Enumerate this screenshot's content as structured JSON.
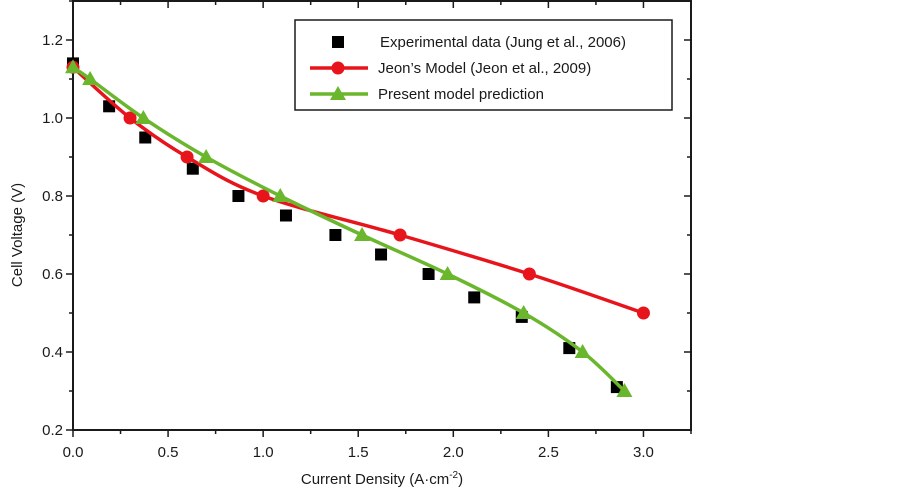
{
  "chart_data": {
    "type": "line",
    "title": "",
    "xlabel": "Current Density (A·cm",
    "xlabel_sup": "-2",
    "xlabel_end": ")",
    "ylabel": "Cell Voltage (V)",
    "xlim": [
      0,
      3.25
    ],
    "ylim": [
      0.2,
      1.3
    ],
    "x_ticks": [
      0.0,
      0.5,
      1.0,
      1.5,
      2.0,
      2.5,
      3.0
    ],
    "x_tick_labels": [
      "0.0",
      "0.5",
      "1.0",
      "1.5",
      "2.0",
      "2.5",
      "3.0"
    ],
    "x_minor_step": 0.25,
    "y_ticks": [
      0.2,
      0.4,
      0.6,
      0.8,
      1.0,
      1.2
    ],
    "y_tick_labels": [
      "0.2",
      "0.4",
      "0.6",
      "0.8",
      "1.0",
      "1.2"
    ],
    "y_minor_step": 0.1,
    "grid": false,
    "legend_position": "top-right",
    "series": [
      {
        "name": "Experimental data (Jung et al., 2006)",
        "marker": "square",
        "line": false,
        "color": "#000000",
        "x": [
          0.0,
          0.19,
          0.38,
          0.63,
          0.87,
          1.12,
          1.38,
          1.62,
          1.87,
          2.11,
          2.36,
          2.61,
          2.86
        ],
        "y": [
          1.14,
          1.03,
          0.95,
          0.87,
          0.8,
          0.75,
          0.7,
          0.65,
          0.6,
          0.54,
          0.49,
          0.41,
          0.31
        ]
      },
      {
        "name": "Jeon’s Model (Jeon et al., 2009)",
        "marker": "circle",
        "line": true,
        "color": "#e8141c",
        "x": [
          0.0,
          0.3,
          0.6,
          1.0,
          1.72,
          2.4,
          3.0
        ],
        "y": [
          1.13,
          1.0,
          0.9,
          0.8,
          0.7,
          0.6,
          0.5
        ]
      },
      {
        "name": "Present model prediction",
        "marker": "triangle",
        "line": true,
        "color": "#6ab62c",
        "x": [
          0.0,
          0.09,
          0.37,
          0.7,
          1.09,
          1.52,
          1.97,
          2.37,
          2.68,
          2.9
        ],
        "y": [
          1.13,
          1.1,
          1.0,
          0.9,
          0.8,
          0.7,
          0.6,
          0.5,
          0.4,
          0.3
        ]
      }
    ]
  }
}
